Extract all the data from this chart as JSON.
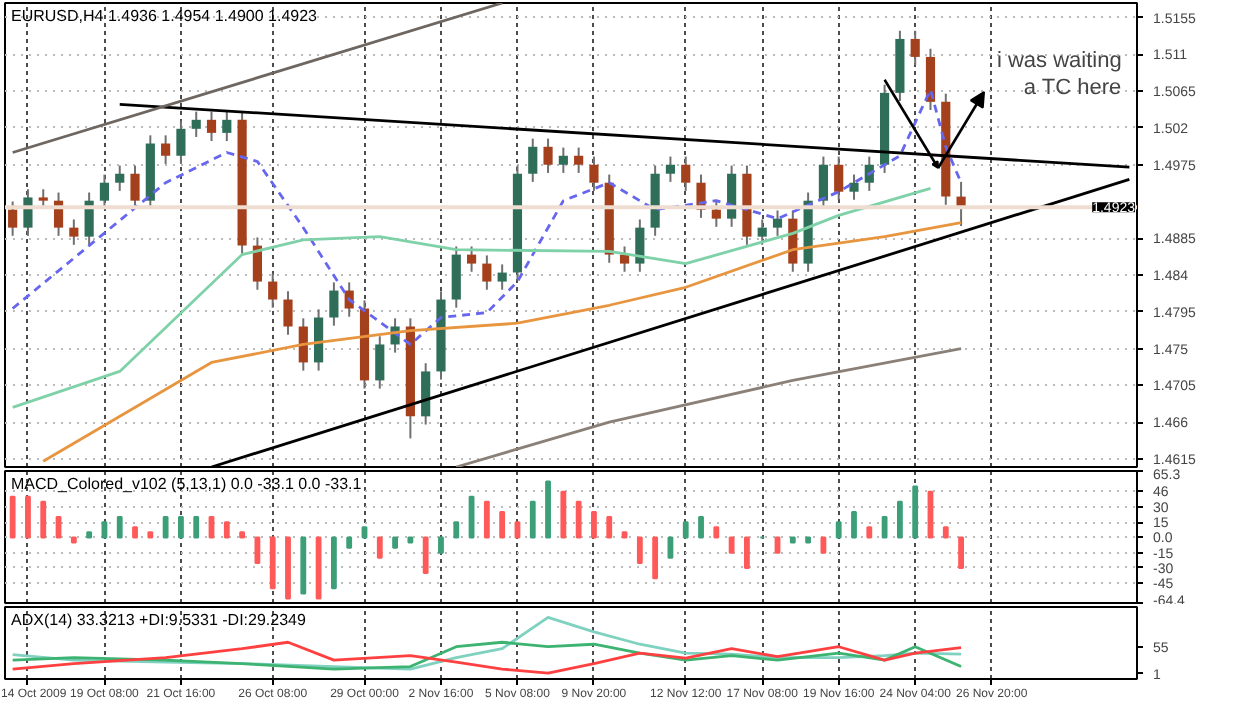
{
  "chart_data": [
    {
      "type": "candlestick",
      "title": "EURUSD,H4  1.4936 1.4954 1.4900 1.4923",
      "categories": [
        null,
        null,
        null,
        null,
        null,
        null,
        null,
        null,
        null,
        null,
        null,
        null,
        null,
        null,
        null,
        null,
        null,
        null,
        null,
        null,
        null,
        null,
        null,
        null,
        null,
        null,
        null,
        null,
        null,
        null,
        null,
        null,
        null,
        null,
        null,
        null,
        null,
        null,
        null,
        null,
        null,
        null,
        null,
        null,
        null,
        null,
        null,
        null,
        null,
        null,
        null,
        null,
        null,
        null,
        null,
        null,
        null,
        null,
        null,
        null,
        null,
        null,
        null,
        null,
        null,
        null,
        null,
        null,
        null,
        null,
        null,
        null,
        null,
        null
      ],
      "ohlc": [
        [
          1.492,
          1.493,
          1.4888,
          1.4898
        ],
        [
          1.4898,
          1.4945,
          1.4888,
          1.4935
        ],
        [
          1.4935,
          1.4945,
          1.4921,
          1.4931
        ],
        [
          1.4931,
          1.4941,
          1.4888,
          1.4898
        ],
        [
          1.4898,
          1.4908,
          1.4877,
          1.4887
        ],
        [
          1.4887,
          1.4941,
          1.4877,
          1.4931
        ],
        [
          1.4931,
          1.4963,
          1.4921,
          1.4953
        ],
        [
          1.4953,
          1.4974,
          1.4943,
          1.4964
        ],
        [
          1.4964,
          1.4974,
          1.4921,
          1.4931
        ],
        [
          1.4931,
          1.5011,
          1.4921,
          1.5001
        ],
        [
          1.5001,
          1.5011,
          1.4976,
          1.4986
        ],
        [
          1.4986,
          1.5029,
          1.4976,
          1.5019
        ],
        [
          1.5019,
          1.504,
          1.5009,
          1.503
        ],
        [
          1.503,
          1.504,
          1.5004,
          1.5014
        ],
        [
          1.5014,
          1.504,
          1.5004,
          1.503
        ],
        [
          1.503,
          1.504,
          1.4866,
          1.4876
        ],
        [
          1.4876,
          1.4886,
          1.4822,
          1.4832
        ],
        [
          1.4832,
          1.4842,
          1.48,
          1.481
        ],
        [
          1.481,
          1.482,
          1.4767,
          1.4777
        ],
        [
          1.4777,
          1.4787,
          1.4723,
          1.4733
        ],
        [
          1.4733,
          1.4798,
          1.4723,
          1.4788
        ],
        [
          1.4788,
          1.4831,
          1.4778,
          1.4821
        ],
        [
          1.4821,
          1.4831,
          1.4789,
          1.4799
        ],
        [
          1.4799,
          1.4809,
          1.4701,
          1.4711
        ],
        [
          1.4711,
          1.4765,
          1.4701,
          1.4755
        ],
        [
          1.4755,
          1.4787,
          1.4745,
          1.4777
        ],
        [
          1.4777,
          1.4787,
          1.464,
          1.4667
        ],
        [
          1.4667,
          1.4732,
          1.4657,
          1.4722
        ],
        [
          1.4722,
          1.482,
          1.4712,
          1.481
        ],
        [
          1.481,
          1.4875,
          1.48,
          1.4865
        ],
        [
          1.4865,
          1.4875,
          1.4844,
          1.4854
        ],
        [
          1.4854,
          1.4864,
          1.4822,
          1.4832
        ],
        [
          1.4832,
          1.4853,
          1.4822,
          1.4843
        ],
        [
          1.4843,
          1.4974,
          1.4833,
          1.4964
        ],
        [
          1.4964,
          1.5007,
          1.4954,
          1.4997
        ],
        [
          1.4997,
          1.5007,
          1.4965,
          1.4975
        ],
        [
          1.4975,
          1.4996,
          1.4965,
          1.4986
        ],
        [
          1.4986,
          1.4996,
          1.4965,
          1.4975
        ],
        [
          1.4975,
          1.4985,
          1.4943,
          1.4953
        ],
        [
          1.4953,
          1.4963,
          1.4855,
          1.4865
        ],
        [
          1.4865,
          1.4875,
          1.4844,
          1.4854
        ],
        [
          1.4854,
          1.4908,
          1.4844,
          1.4898
        ],
        [
          1.4898,
          1.4974,
          1.4888,
          1.4964
        ],
        [
          1.4964,
          1.4985,
          1.4954,
          1.4975
        ],
        [
          1.4975,
          1.4985,
          1.4943,
          1.4953
        ],
        [
          1.4953,
          1.4963,
          1.491,
          1.492
        ],
        [
          1.492,
          1.493,
          1.4899,
          1.4909
        ],
        [
          1.4909,
          1.4974,
          1.4899,
          1.4964
        ],
        [
          1.4964,
          1.4974,
          1.4877,
          1.4887
        ],
        [
          1.4887,
          1.4908,
          1.4877,
          1.4898
        ],
        [
          1.4898,
          1.4919,
          1.4888,
          1.4909
        ],
        [
          1.4909,
          1.4919,
          1.4844,
          1.4854
        ],
        [
          1.4854,
          1.4941,
          1.4844,
          1.4931
        ],
        [
          1.4931,
          1.4985,
          1.4921,
          1.4975
        ],
        [
          1.4975,
          1.4985,
          1.4932,
          1.4942
        ],
        [
          1.4942,
          1.4963,
          1.4932,
          1.4953
        ],
        [
          1.4953,
          1.4985,
          1.4943,
          1.4975
        ],
        [
          1.4975,
          1.5073,
          1.4965,
          1.5063
        ],
        [
          1.5063,
          1.5139,
          1.5053,
          1.5129
        ],
        [
          1.5129,
          1.5139,
          1.5097,
          1.5107
        ],
        [
          1.5107,
          1.5117,
          1.5042,
          1.5052
        ],
        [
          1.5052,
          1.5062,
          1.4926,
          1.4936
        ],
        [
          1.4936,
          1.4954,
          1.49,
          1.4923
        ],
        null,
        null,
        null,
        null,
        null,
        null,
        null,
        null,
        null,
        null,
        null
      ],
      "series": [
        {
          "type": "line",
          "color": "#6666ee",
          "line_style": "dashed",
          "values": [
            1.4799,
            null,
            null,
            null,
            null,
            1.4876,
            null,
            null,
            null,
            null,
            1.4953,
            null,
            null,
            null,
            1.499,
            null,
            1.4979,
            null,
            null,
            1.4898,
            null,
            null,
            1.481,
            null,
            null,
            null,
            1.4755,
            null,
            1.4788,
            null,
            null,
            1.4794,
            null,
            1.4832,
            null,
            null,
            1.4931,
            null,
            null,
            1.4953,
            null,
            null,
            1.492,
            null,
            null,
            null,
            1.4931,
            null,
            null,
            null,
            1.4909,
            null,
            null,
            null,
            1.4942,
            null,
            null,
            null,
            1.4986,
            null,
            1.5067,
            1.4997,
            1.4953,
            null,
            null,
            null,
            null,
            null,
            null,
            null,
            null,
            null,
            null,
            null
          ]
        },
        {
          "type": "line",
          "color": "#7fd1a8",
          "values": [
            1.4678,
            null,
            null,
            null,
            null,
            null,
            null,
            1.4722,
            null,
            null,
            null,
            null,
            null,
            null,
            null,
            1.4865,
            null,
            null,
            null,
            1.4883,
            null,
            null,
            null,
            null,
            1.4887,
            null,
            null,
            null,
            null,
            1.4871,
            null,
            null,
            null,
            null,
            null,
            null,
            null,
            null,
            null,
            1.4869,
            null,
            null,
            null,
            null,
            1.4854,
            null,
            null,
            null,
            null,
            null,
            null,
            1.4891,
            null,
            null,
            1.4913,
            null,
            null,
            null,
            null,
            null,
            1.4946,
            null,
            null,
            null,
            null,
            null,
            null,
            null,
            null,
            null,
            null,
            null,
            null,
            null
          ]
        },
        {
          "type": "line",
          "color": "#e8953f",
          "values": [
            null,
            null,
            1.4612,
            null,
            null,
            null,
            null,
            null,
            null,
            null,
            null,
            null,
            null,
            1.4733,
            null,
            null,
            null,
            null,
            null,
            1.4755,
            null,
            null,
            null,
            null,
            null,
            null,
            1.4772,
            null,
            null,
            null,
            null,
            null,
            null,
            1.4781,
            null,
            null,
            null,
            null,
            null,
            1.4803,
            null,
            null,
            null,
            null,
            1.4825,
            null,
            null,
            null,
            null,
            null,
            null,
            1.4871,
            null,
            null,
            null,
            null,
            null,
            1.4887,
            null,
            null,
            null,
            null,
            1.4904,
            null,
            null,
            null,
            null,
            null,
            null,
            null,
            null,
            null,
            null,
            null
          ]
        },
        {
          "type": "line",
          "color": "#8a8078",
          "values": [
            null,
            null,
            null,
            null,
            null,
            null,
            null,
            null,
            null,
            null,
            null,
            null,
            null,
            null,
            null,
            null,
            null,
            null,
            null,
            null,
            null,
            null,
            null,
            null,
            null,
            null,
            null,
            null,
            null,
            1.4605,
            null,
            null,
            null,
            null,
            null,
            null,
            null,
            null,
            null,
            1.466,
            null,
            null,
            null,
            null,
            null,
            null,
            null,
            null,
            null,
            null,
            null,
            1.4711,
            null,
            null,
            null,
            null,
            null,
            null,
            null,
            null,
            null,
            null,
            1.475,
            null,
            null,
            null,
            null,
            null,
            null,
            null,
            null,
            null,
            null,
            null
          ]
        },
        {
          "type": "line",
          "color": "#000000",
          "values": [
            null,
            null,
            null,
            null,
            null,
            null,
            null,
            1.5049,
            null,
            null,
            null,
            null,
            null,
            null,
            null,
            null,
            null,
            null,
            null,
            null,
            null,
            null,
            null,
            null,
            null,
            null,
            null,
            null,
            null,
            null,
            null,
            null,
            null,
            null,
            null,
            null,
            null,
            null,
            null,
            null,
            null,
            null,
            null,
            null,
            null,
            null,
            null,
            null,
            null,
            null,
            null,
            null,
            null,
            null,
            null,
            null,
            null,
            null,
            null,
            null,
            null,
            null,
            null,
            null,
            null,
            null,
            null,
            null,
            null,
            null,
            null,
            null,
            null,
            1.4972
          ]
        },
        {
          "type": "line",
          "color": "#000000",
          "values": [
            null,
            null,
            null,
            null,
            null,
            null,
            null,
            null,
            null,
            null,
            null,
            null,
            null,
            1.4605,
            null,
            null,
            null,
            null,
            null,
            null,
            null,
            null,
            null,
            null,
            null,
            null,
            null,
            null,
            null,
            null,
            null,
            null,
            null,
            null,
            null,
            null,
            null,
            null,
            null,
            null,
            null,
            null,
            null,
            null,
            null,
            null,
            null,
            null,
            null,
            null,
            null,
            null,
            null,
            null,
            null,
            null,
            null,
            null,
            null,
            null,
            null,
            null,
            null,
            null,
            null,
            null,
            null,
            null,
            null,
            null,
            null,
            null,
            null,
            1.4957
          ]
        },
        {
          "type": "line",
          "color": "#6e6660",
          "values": [
            1.499,
            null,
            null,
            null,
            null,
            null,
            null,
            null,
            null,
            null,
            null,
            null,
            null,
            null,
            null,
            null,
            null,
            null,
            null,
            null,
            null,
            null,
            null,
            null,
            null,
            null,
            null,
            null,
            null,
            null,
            null,
            null,
            1.5173,
            null,
            null,
            null,
            null,
            null,
            null,
            null,
            null,
            null,
            null,
            null,
            null,
            null,
            null,
            null,
            null,
            null,
            null,
            null,
            null,
            null,
            null,
            null,
            null,
            null,
            null,
            null,
            null,
            null,
            null,
            null,
            null,
            null,
            null,
            null,
            null,
            null,
            null,
            null,
            null,
            null
          ]
        }
      ],
      "ref_lines": [
        {
          "axis": "y",
          "value": 1.4923,
          "label": "1.4923",
          "color": "#eeddd0"
        }
      ],
      "annotations": [
        "i was waiting a TC here"
      ],
      "ylim": [
        1.4605,
        1.5173
      ],
      "yticks": [
        1.5155,
        1.511,
        1.5065,
        1.502,
        1.4975,
        1.4885,
        1.484,
        1.4795,
        1.475,
        1.4705,
        1.466,
        1.4615
      ],
      "grid": true,
      "tick_labels": "y"
    },
    {
      "type": "bar",
      "title": "MACD_Colored_v102 (5,13,1) 0.0 -33.1 0.0 -33.1",
      "categories": [
        null,
        null,
        null,
        null,
        null,
        null,
        null,
        null,
        null,
        null,
        null,
        null,
        null,
        null,
        null,
        null,
        null,
        null,
        null,
        null,
        null,
        null,
        null,
        null,
        null,
        null,
        null,
        null,
        null,
        null,
        null,
        null,
        null,
        null,
        null,
        null,
        null,
        null,
        null,
        null,
        null,
        null,
        null,
        null,
        null,
        null,
        null,
        null,
        null,
        null,
        null,
        null,
        null,
        null,
        null,
        null,
        null,
        null,
        null,
        null,
        null,
        null,
        null,
        null,
        null,
        null,
        null,
        null,
        null,
        null,
        null,
        null,
        null,
        null
      ],
      "values": [
        40,
        40,
        35,
        20,
        -5,
        5,
        15,
        20,
        10,
        5,
        20,
        20,
        20,
        20,
        15,
        5,
        -25,
        -50,
        -60,
        -55,
        -60,
        -50,
        -10,
        10,
        -20,
        -10,
        -5,
        -35,
        -15,
        15,
        40,
        35,
        25,
        15,
        35,
        55,
        45,
        35,
        25,
        20,
        5,
        -25,
        -40,
        -20,
        15,
        20,
        10,
        -15,
        -30,
        0,
        -15,
        -5,
        -5,
        -15,
        15,
        25,
        10,
        20,
        35,
        50,
        45,
        10,
        -30,
        null,
        null,
        null,
        null,
        null,
        null,
        null,
        null,
        null,
        null,
        null
      ],
      "colors": [
        "#ff5a5a",
        "#ff5a5a",
        "#ff5a5a",
        "#ff5a5a",
        "#ff5a5a",
        "#3c9f78",
        "#3c9f78",
        "#3c9f78",
        "#ff5a5a",
        "#ff5a5a",
        "#3c9f78",
        "#3c9f78",
        "#3c9f78",
        "#ff5a5a",
        "#ff5a5a",
        "#ff5a5a",
        "#ff5a5a",
        "#ff5a5a",
        "#ff5a5a",
        "#3c9f78",
        "#ff5a5a",
        "#3c9f78",
        "#3c9f78",
        "#3c9f78",
        "#ff5a5a",
        "#3c9f78",
        "#3c9f78",
        "#ff5a5a",
        "#3c9f78",
        "#3c9f78",
        "#3c9f78",
        "#ff5a5a",
        "#ff5a5a",
        "#ff5a5a",
        "#3c9f78",
        "#3c9f78",
        "#ff5a5a",
        "#ff5a5a",
        "#ff5a5a",
        "#ff5a5a",
        "#ff5a5a",
        "#ff5a5a",
        "#ff5a5a",
        "#3c9f78",
        "#3c9f78",
        "#3c9f78",
        "#ff5a5a",
        "#ff5a5a",
        "#ff5a5a",
        "#3c9f78",
        "#ff5a5a",
        "#3c9f78",
        "#3c9f78",
        "#ff5a5a",
        "#3c9f78",
        "#3c9f78",
        "#ff5a5a",
        "#3c9f78",
        "#3c9f78",
        "#3c9f78",
        "#ff5a5a",
        "#ff5a5a",
        "#ff5a5a",
        null,
        null,
        null,
        null,
        null,
        null,
        null,
        null,
        null,
        null,
        null
      ],
      "ylim": [
        -64.4,
        65.3
      ],
      "yticks": [
        65.3,
        46,
        30,
        15,
        {
          "value": 0,
          "label": "0.0"
        },
        -15,
        -30,
        -45,
        -64.4
      ],
      "grid": true,
      "tick_labels": "y"
    },
    {
      "type": "line",
      "title": "ADX(14) 33.3213 +DI:9.5331 -DI:29.2349",
      "categories": [
        null,
        "14 Oct 2009",
        null,
        null,
        null,
        null,
        "19 Oct 08:00",
        null,
        null,
        null,
        null,
        "21 Oct 16:00",
        null,
        null,
        null,
        null,
        null,
        "26 Oct 08:00",
        null,
        null,
        null,
        null,
        null,
        "29 Oct 00:00",
        null,
        null,
        null,
        null,
        "2 Nov 16:00",
        null,
        null,
        null,
        null,
        "5 Nov 08:00",
        null,
        null,
        null,
        null,
        "9 Nov 20:00",
        null,
        null,
        null,
        null,
        null,
        "12 Nov 12:00",
        null,
        null,
        null,
        null,
        "17 Nov 08:00",
        null,
        null,
        null,
        null,
        "19 Nov 16:00",
        null,
        null,
        null,
        null,
        "24 Nov 04:00",
        null,
        null,
        null,
        null,
        "26 Nov 20:00",
        null,
        null,
        null,
        null,
        null,
        null,
        null,
        null,
        null
      ],
      "series": [
        {
          "color": "#7fd1c0",
          "values": [
            39,
            null,
            null,
            null,
            28,
            null,
            null,
            null,
            null,
            null,
            24,
            null,
            null,
            null,
            null,
            21,
            null,
            null,
            null,
            null,
            null,
            15,
            null,
            null,
            null,
            null,
            10,
            null,
            null,
            33,
            null,
            null,
            51,
            null,
            null,
            114,
            null,
            null,
            85,
            null,
            null,
            60,
            null,
            null,
            42,
            null,
            null,
            40,
            null,
            null,
            33,
            null,
            null,
            null,
            33,
            null,
            null,
            37,
            null,
            42,
            null,
            null,
            40,
            null,
            null,
            null,
            null,
            null,
            null,
            null,
            null,
            null,
            null,
            null
          ]
        },
        {
          "color": "#3cb371",
          "values": [
            28,
            null,
            null,
            null,
            33,
            null,
            null,
            null,
            null,
            null,
            28,
            null,
            null,
            null,
            null,
            21,
            null,
            null,
            null,
            null,
            null,
            10,
            null,
            null,
            null,
            null,
            15,
            null,
            null,
            55,
            null,
            null,
            64,
            null,
            null,
            55,
            null,
            null,
            60,
            null,
            null,
            42,
            null,
            null,
            28,
            null,
            null,
            37,
            null,
            null,
            28,
            null,
            null,
            null,
            42,
            null,
            null,
            28,
            null,
            55,
            null,
            null,
            15,
            null,
            null,
            null,
            null,
            null,
            null,
            null,
            null,
            null,
            null,
            null
          ]
        },
        {
          "color": "#ff4040",
          "values": [
            10,
            null,
            null,
            null,
            21,
            null,
            null,
            null,
            null,
            null,
            33,
            null,
            null,
            null,
            null,
            51,
            null,
            null,
            64,
            null,
            null,
            28,
            null,
            null,
            null,
            null,
            37,
            null,
            null,
            24,
            null,
            null,
            10,
            null,
            null,
            2,
            null,
            null,
            21,
            null,
            null,
            42,
            null,
            null,
            32,
            null,
            null,
            51,
            null,
            null,
            35,
            null,
            null,
            null,
            55,
            null,
            null,
            28,
            null,
            42,
            null,
            null,
            53,
            null,
            null,
            null,
            null,
            null,
            null,
            null,
            null,
            null,
            null,
            null
          ]
        }
      ],
      "ylim": [
        -10,
        135
      ],
      "yticks": [
        55,
        1
      ],
      "grid": "x"
    }
  ]
}
